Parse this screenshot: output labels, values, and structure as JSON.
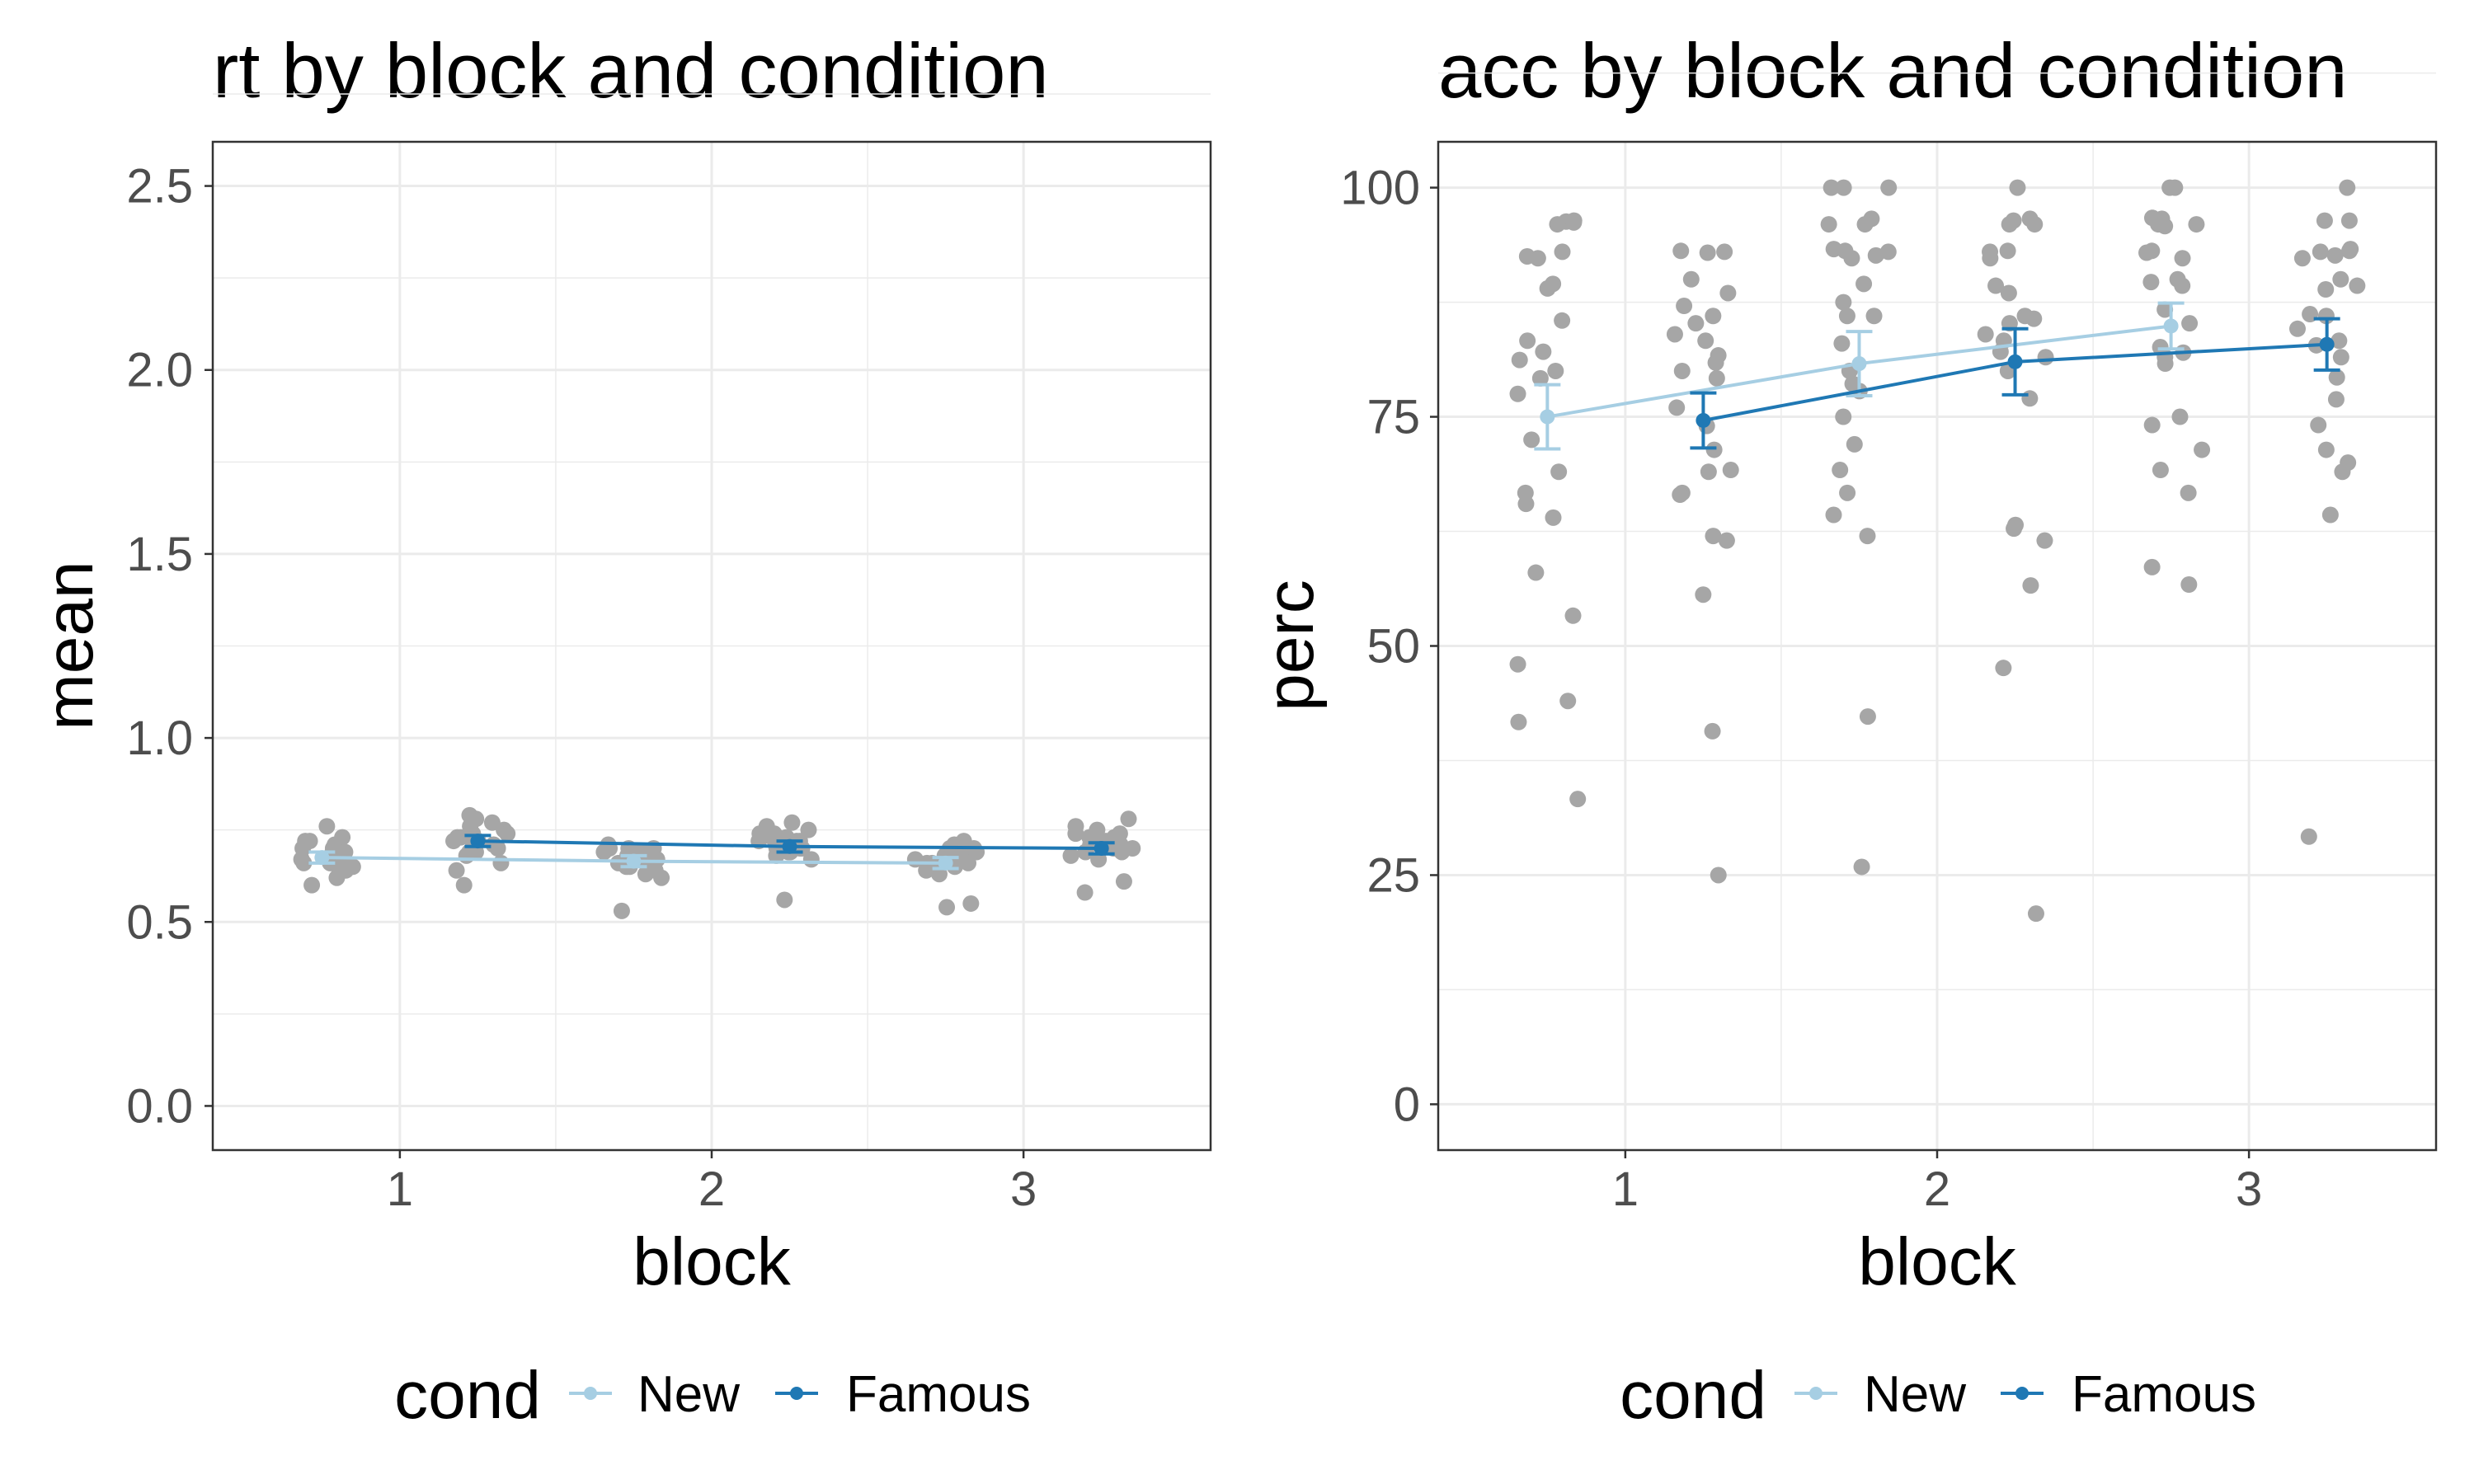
{
  "legend": {
    "title": "cond",
    "items": [
      {
        "label": "New",
        "color": "#a6cee3"
      },
      {
        "label": "Famous",
        "color": "#1f78b4"
      }
    ]
  },
  "style": {
    "jitter_point_color": "#a6a6a6",
    "grid_color": "#ebebeb",
    "panel_border_color": "#333333"
  },
  "chart_data": [
    {
      "type": "line",
      "title": "rt by block and condition",
      "xlabel": "block",
      "ylabel": "mean",
      "xlim": [
        0.4,
        3.6
      ],
      "ylim": [
        -0.12,
        2.62
      ],
      "x_ticks": [
        1,
        2,
        3
      ],
      "x_tick_labels": [
        "1",
        "2",
        "3"
      ],
      "y_ticks": [
        0.0,
        0.5,
        1.0,
        1.5,
        2.0,
        2.5
      ],
      "y_tick_labels": [
        "0.0",
        "0.5",
        "1.0",
        "1.5",
        "2.0",
        "2.5"
      ],
      "grid": true,
      "legend_position": "bottom",
      "series": [
        {
          "name": "New",
          "x": [
            1,
            2,
            3
          ],
          "values": [
            0.675,
            0.665,
            0.66
          ],
          "error_low": [
            0.66,
            0.65,
            0.645
          ],
          "error_high": [
            0.69,
            0.68,
            0.675
          ]
        },
        {
          "name": "Famous",
          "x": [
            1,
            2,
            3
          ],
          "values": [
            0.72,
            0.705,
            0.7
          ],
          "error_low": [
            0.705,
            0.69,
            0.685
          ],
          "error_high": [
            0.735,
            0.72,
            0.715
          ]
        }
      ],
      "jitter_points": [
        {
          "cond": "New",
          "block": 1,
          "values": [
            0.68,
            0.72,
            0.66,
            0.65,
            0.7,
            0.69,
            0.67,
            0.64,
            0.71,
            0.73,
            0.62,
            0.6,
            0.68,
            0.7,
            0.76,
            0.72,
            0.66,
            0.64,
            0.69,
            0.67
          ]
        },
        {
          "cond": "Famous",
          "block": 1,
          "values": [
            0.72,
            0.78,
            0.77,
            0.69,
            0.6,
            0.79,
            0.75,
            0.66,
            0.74,
            0.71,
            0.7,
            0.73,
            0.64,
            0.68,
            0.76,
            0.72,
            0.74,
            0.69,
            0.71,
            0.73
          ]
        },
        {
          "cond": "New",
          "block": 2,
          "values": [
            0.65,
            0.67,
            0.7,
            0.53,
            0.69,
            0.64,
            0.66,
            0.7,
            0.68,
            0.71,
            0.63,
            0.67,
            0.69,
            0.66,
            0.65,
            0.68,
            0.7,
            0.62,
            0.67,
            0.69
          ]
        },
        {
          "cond": "Famous",
          "block": 2,
          "values": [
            0.74,
            0.76,
            0.7,
            0.72,
            0.68,
            0.71,
            0.56,
            0.73,
            0.75,
            0.69,
            0.77,
            0.67,
            0.72,
            0.7,
            0.74,
            0.71,
            0.73,
            0.69,
            0.72,
            0.7
          ]
        },
        {
          "cond": "New",
          "block": 3,
          "values": [
            0.68,
            0.7,
            0.66,
            0.54,
            0.55,
            0.69,
            0.67,
            0.71,
            0.65,
            0.63,
            0.7,
            0.68,
            0.66,
            0.72,
            0.69,
            0.67,
            0.64,
            0.7,
            0.68,
            0.66
          ]
        },
        {
          "cond": "Famous",
          "block": 3,
          "values": [
            0.72,
            0.7,
            0.74,
            0.78,
            0.76,
            0.69,
            0.67,
            0.71,
            0.73,
            0.61,
            0.58,
            0.7,
            0.72,
            0.75,
            0.68,
            0.71,
            0.73,
            0.69,
            0.74,
            0.7
          ]
        }
      ]
    },
    {
      "type": "line",
      "title": "acc by block and condition",
      "xlabel": "block",
      "ylabel": "perc",
      "xlim": [
        0.4,
        3.6
      ],
      "ylim": [
        -5,
        105
      ],
      "x_ticks": [
        1,
        2,
        3
      ],
      "x_tick_labels": [
        "1",
        "2",
        "3"
      ],
      "y_ticks": [
        0,
        25,
        50,
        75,
        100
      ],
      "y_tick_labels": [
        "0",
        "25",
        "50",
        "75",
        "100"
      ],
      "grid": true,
      "legend_position": "bottom",
      "series": [
        {
          "name": "New",
          "x": [
            1,
            2,
            3
          ],
          "values": [
            75.0,
            80.8,
            84.9
          ],
          "error_low": [
            71.5,
            77.3,
            82.4
          ],
          "error_high": [
            78.5,
            84.3,
            87.4
          ]
        },
        {
          "name": "Famous",
          "x": [
            1,
            2,
            3
          ],
          "values": [
            74.6,
            81.0,
            82.9
          ],
          "error_low": [
            71.6,
            77.4,
            80.1
          ],
          "error_high": [
            77.6,
            84.6,
            85.7
          ]
        }
      ],
      "jitter_points": [
        {
          "cond": "New",
          "block": 1,
          "values": [
            96.4,
            96.3,
            96.0,
            93.0,
            92.3,
            89.5,
            89.0,
            85.5,
            83.3,
            82.1,
            81.2,
            80.0,
            79.2,
            77.5,
            72.5,
            69.0,
            66.7,
            65.5,
            64.0,
            58.0,
            53.3,
            48.0,
            44.0,
            41.7,
            33.3,
            96.2,
            92.5
          ]
        },
        {
          "cond": "Famous",
          "block": 1,
          "values": [
            93.1,
            93.0,
            92.9,
            88.5,
            87.1,
            86.0,
            85.2,
            83.3,
            81.7,
            80.9,
            80.0,
            76.0,
            74.0,
            71.4,
            69.2,
            69.0,
            66.7,
            66.5,
            62.0,
            61.5,
            55.6,
            40.7,
            25.0,
            79.2,
            84.0,
            90.0
          ]
        },
        {
          "cond": "New",
          "block": 2,
          "values": [
            100.0,
            100.0,
            100.0,
            96.6,
            96.0,
            96.0,
            93.3,
            93.1,
            92.6,
            92.3,
            89.5,
            87.5,
            86.0,
            86.0,
            80.0,
            78.6,
            77.8,
            75.0,
            72.0,
            69.2,
            66.7,
            64.3,
            62.0,
            42.3,
            25.9,
            83.0,
            93.0
          ]
        },
        {
          "cond": "Famous",
          "block": 2,
          "values": [
            100.0,
            96.6,
            96.4,
            96.0,
            96.0,
            93.1,
            93.0,
            89.3,
            88.5,
            86.0,
            85.7,
            85.2,
            83.3,
            82.1,
            81.5,
            80.0,
            77.0,
            63.2,
            62.8,
            61.5,
            56.6,
            47.6,
            20.8,
            92.3,
            84.0
          ]
        },
        {
          "cond": "New",
          "block": 3,
          "values": [
            100.0,
            100.0,
            96.7,
            96.6,
            96.0,
            96.0,
            93.1,
            92.9,
            92.3,
            90.0,
            89.3,
            86.7,
            85.2,
            82.6,
            81.5,
            80.8,
            75.0,
            74.1,
            71.4,
            69.2,
            66.7,
            58.6,
            56.7,
            82.0,
            89.7,
            95.8
          ]
        },
        {
          "cond": "Famous",
          "block": 3,
          "values": [
            100.0,
            96.4,
            96.4,
            93.3,
            93.1,
            92.6,
            92.3,
            90.0,
            89.3,
            86.2,
            86.0,
            84.6,
            83.3,
            82.8,
            81.5,
            79.3,
            76.9,
            74.1,
            71.4,
            70.0,
            69.0,
            64.3,
            29.2,
            88.9,
            93.0
          ]
        }
      ]
    }
  ]
}
